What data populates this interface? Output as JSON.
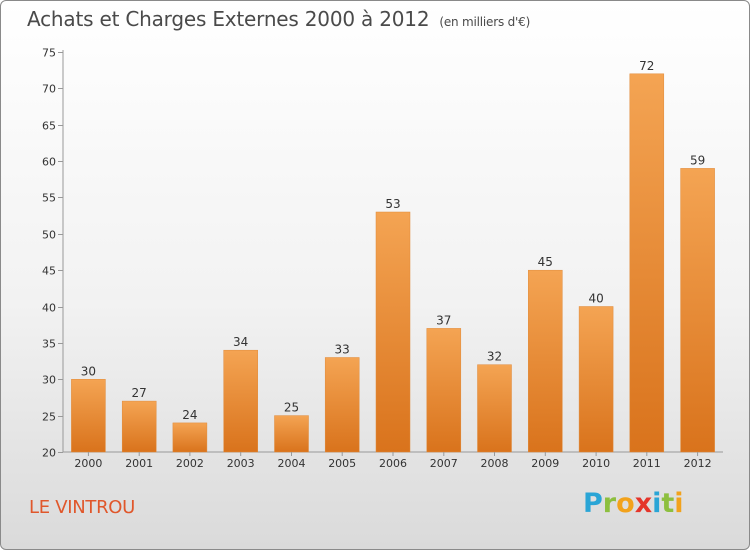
{
  "title": "Achats et Charges Externes 2000 à 2012",
  "subtitle": "(en milliers d'€)",
  "commune": "LE VINTROU",
  "logo": {
    "letters": [
      "P",
      "r",
      "o",
      "x",
      "i",
      "t",
      "i"
    ],
    "colors": [
      "#2aa5d6",
      "#8dbf3f",
      "#f2a21b",
      "#e5352a",
      "#2aa5d6",
      "#8dbf3f",
      "#f2a21b"
    ]
  },
  "colors": {
    "bar_light": "#f4a453",
    "bar_dark": "#d9731c",
    "axis": "#999999",
    "text": "#333333"
  },
  "chart_data": {
    "type": "bar",
    "categories": [
      "2000",
      "2001",
      "2002",
      "2003",
      "2004",
      "2005",
      "2006",
      "2007",
      "2008",
      "2009",
      "2010",
      "2011",
      "2012"
    ],
    "values": [
      30,
      27,
      24,
      34,
      25,
      33,
      53,
      37,
      32,
      45,
      40,
      72,
      59
    ],
    "ylim": [
      20,
      75
    ],
    "yticks": [
      20,
      25,
      30,
      35,
      40,
      45,
      50,
      55,
      60,
      65,
      70,
      75
    ],
    "grid": false,
    "data_labels": true
  }
}
